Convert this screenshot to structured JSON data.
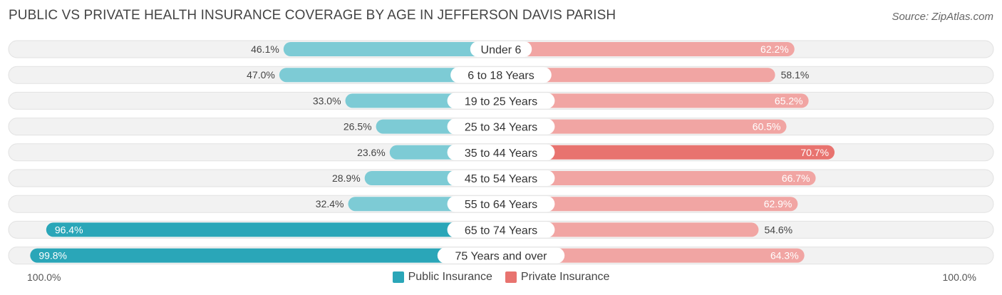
{
  "title": "PUBLIC VS PRIVATE HEALTH INSURANCE COVERAGE BY AGE IN JEFFERSON DAVIS PARISH",
  "source": "Source: ZipAtlas.com",
  "colors": {
    "public": "#2aa6b8",
    "public_light": "#7dcbd5",
    "private": "#e8736f",
    "private_light": "#f1a5a3",
    "row_bg": "#f2f2f2"
  },
  "axis": {
    "left_label": "100.0%",
    "right_label": "100.0%"
  },
  "legend": {
    "public_label": "Public Insurance",
    "private_label": "Private Insurance"
  },
  "chart_data": {
    "type": "bar",
    "orientation": "diverging-horizontal",
    "categories": [
      "Under 6",
      "6 to 18 Years",
      "19 to 25 Years",
      "25 to 34 Years",
      "35 to 44 Years",
      "45 to 54 Years",
      "55 to 64 Years",
      "65 to 74 Years",
      "75 Years and over"
    ],
    "series": [
      {
        "name": "Public Insurance",
        "values": [
          46.1,
          47.0,
          33.0,
          26.5,
          23.6,
          28.9,
          32.4,
          96.4,
          99.8
        ],
        "labels": [
          "46.1%",
          "47.0%",
          "33.0%",
          "26.5%",
          "23.6%",
          "28.9%",
          "32.4%",
          "96.4%",
          "99.8%"
        ]
      },
      {
        "name": "Private Insurance",
        "values": [
          62.2,
          58.1,
          65.2,
          60.5,
          70.7,
          66.7,
          62.9,
          54.6,
          64.3
        ],
        "labels": [
          "62.2%",
          "58.1%",
          "65.2%",
          "60.5%",
          "70.7%",
          "66.7%",
          "62.9%",
          "54.6%",
          "64.3%"
        ]
      }
    ],
    "xlim": [
      -100,
      100
    ],
    "legend_position": "bottom-center"
  }
}
